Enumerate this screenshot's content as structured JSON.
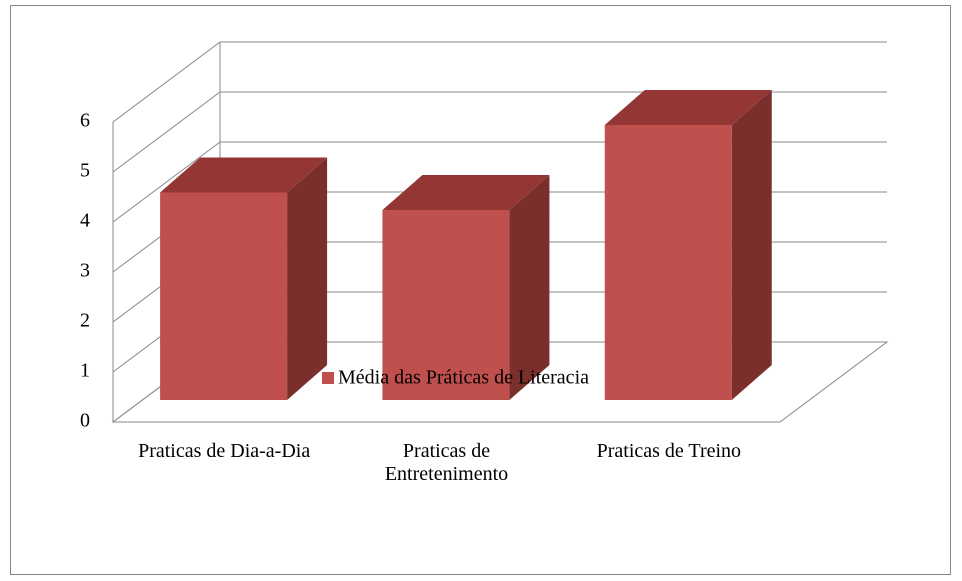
{
  "chart_data": {
    "type": "bar3d",
    "categories": [
      "Praticas de Dia-a-Dia",
      "Praticas de Entretenimento",
      "Praticas de Treino"
    ],
    "series": [
      {
        "name": "Média das Práticas de Literacia",
        "color": "#c0504d",
        "values": [
          4.15,
          3.8,
          5.5
        ]
      }
    ],
    "ylim": [
      0,
      6
    ],
    "yticks": [
      0,
      1,
      2,
      3,
      4,
      5,
      6
    ],
    "grid": true,
    "legend": "bottom"
  }
}
